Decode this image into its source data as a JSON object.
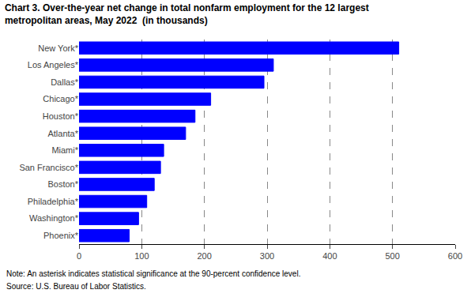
{
  "chart_data": {
    "type": "bar",
    "title": "Chart 3. Over-the-year net change in total nonfarm employment for the 12 largest",
    "subtitle": "metropolitan areas, May 2022  (in thousands)",
    "annotations": [
      "Note: An asterisk indicates statistical significance at the 90-percent confidence level.",
      "Source: U.S. Bureau of Labor Statistics."
    ],
    "orientation": "horizontal",
    "categories": [
      "Phoenix*",
      "Washington*",
      "Philadelphia*",
      "Boston*",
      "San Francisco*",
      "Miami*",
      "Atlanta*",
      "Houston*",
      "Chicago*",
      "Dallas*",
      "Los Angeles*",
      "New York*"
    ],
    "values": [
      80,
      95,
      108,
      120,
      130,
      135,
      170,
      185,
      210,
      295,
      310,
      510
    ],
    "color": "#0000FF",
    "xlim": [
      0,
      600
    ],
    "xticks": [
      0,
      100,
      200,
      300,
      400,
      500,
      600
    ],
    "grid": true
  }
}
